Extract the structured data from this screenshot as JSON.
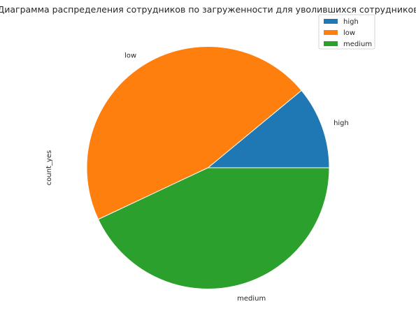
{
  "chart_data": {
    "type": "pie",
    "title": "Диаграмма распределения сотрудников по загруженности для уволившихся сотрудников",
    "ylabel": "count_yes",
    "categories": [
      "high",
      "low",
      "medium"
    ],
    "values": [
      11,
      46,
      43
    ],
    "colors": [
      "#1f77b4",
      "#ff7f0e",
      "#2ca02c"
    ],
    "start_angle_deg": 0,
    "direction": "counterclockwise",
    "legend": {
      "placement": "top-right",
      "entries": [
        "high",
        "low",
        "medium"
      ]
    }
  }
}
